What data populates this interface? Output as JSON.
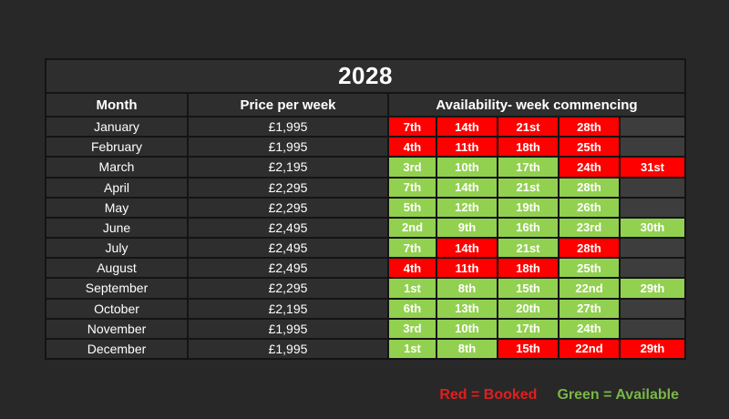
{
  "title": "2028",
  "columns": {
    "month": "Month",
    "price": "Price per week",
    "availability": "Availability- week commencing"
  },
  "legend": {
    "booked": "Red = Booked",
    "available": "Green = Available"
  },
  "colors": {
    "page_bg": "#282828",
    "cell_bg": "#2e2e2e",
    "empty_cell_bg": "#3d3d3d",
    "grid": "#141414",
    "text": "#ffffff",
    "booked": "#ff0000",
    "available": "#92d050",
    "legend_booked": "#e01f1f",
    "legend_available": "#7ab648"
  },
  "chart_data": {
    "type": "table",
    "title": "2028",
    "columns": [
      "Month",
      "Price per week",
      "Availability- week commencing"
    ],
    "legend": {
      "red": "Booked",
      "green": "Available"
    },
    "rows": [
      {
        "month": "January",
        "price": "£1,995",
        "weeks": [
          {
            "date": "7th",
            "status": "booked"
          },
          {
            "date": "14th",
            "status": "booked"
          },
          {
            "date": "21st",
            "status": "booked"
          },
          {
            "date": "28th",
            "status": "booked"
          },
          {
            "date": "",
            "status": "empty"
          }
        ]
      },
      {
        "month": "February",
        "price": "£1,995",
        "weeks": [
          {
            "date": "4th",
            "status": "booked"
          },
          {
            "date": "11th",
            "status": "booked"
          },
          {
            "date": "18th",
            "status": "booked"
          },
          {
            "date": "25th",
            "status": "booked"
          },
          {
            "date": "",
            "status": "empty"
          }
        ]
      },
      {
        "month": "March",
        "price": "£2,195",
        "weeks": [
          {
            "date": "3rd",
            "status": "available"
          },
          {
            "date": "10th",
            "status": "available"
          },
          {
            "date": "17th",
            "status": "available"
          },
          {
            "date": "24th",
            "status": "booked"
          },
          {
            "date": "31st",
            "status": "booked"
          }
        ]
      },
      {
        "month": "April",
        "price": "£2,295",
        "weeks": [
          {
            "date": "7th",
            "status": "available"
          },
          {
            "date": "14th",
            "status": "available"
          },
          {
            "date": "21st",
            "status": "available"
          },
          {
            "date": "28th",
            "status": "available"
          },
          {
            "date": "",
            "status": "empty"
          }
        ]
      },
      {
        "month": "May",
        "price": "£2,295",
        "weeks": [
          {
            "date": "5th",
            "status": "available"
          },
          {
            "date": "12th",
            "status": "available"
          },
          {
            "date": "19th",
            "status": "available"
          },
          {
            "date": "26th",
            "status": "available"
          },
          {
            "date": "",
            "status": "empty"
          }
        ]
      },
      {
        "month": "June",
        "price": "£2,495",
        "weeks": [
          {
            "date": "2nd",
            "status": "available"
          },
          {
            "date": "9th",
            "status": "available"
          },
          {
            "date": "16th",
            "status": "available"
          },
          {
            "date": "23rd",
            "status": "available"
          },
          {
            "date": "30th",
            "status": "available"
          }
        ]
      },
      {
        "month": "July",
        "price": "£2,495",
        "weeks": [
          {
            "date": "7th",
            "status": "available"
          },
          {
            "date": "14th",
            "status": "booked"
          },
          {
            "date": "21st",
            "status": "available"
          },
          {
            "date": "28th",
            "status": "booked"
          },
          {
            "date": "",
            "status": "empty"
          }
        ]
      },
      {
        "month": "August",
        "price": "£2,495",
        "weeks": [
          {
            "date": "4th",
            "status": "booked"
          },
          {
            "date": "11th",
            "status": "booked"
          },
          {
            "date": "18th",
            "status": "booked"
          },
          {
            "date": "25th",
            "status": "available"
          },
          {
            "date": "",
            "status": "empty"
          }
        ]
      },
      {
        "month": "September",
        "price": "£2,295",
        "weeks": [
          {
            "date": "1st",
            "status": "available"
          },
          {
            "date": "8th",
            "status": "available"
          },
          {
            "date": "15th",
            "status": "available"
          },
          {
            "date": "22nd",
            "status": "available"
          },
          {
            "date": "29th",
            "status": "available"
          }
        ]
      },
      {
        "month": "October",
        "price": "£2,195",
        "weeks": [
          {
            "date": "6th",
            "status": "available"
          },
          {
            "date": "13th",
            "status": "available"
          },
          {
            "date": "20th",
            "status": "available"
          },
          {
            "date": "27th",
            "status": "available"
          },
          {
            "date": "",
            "status": "empty"
          }
        ]
      },
      {
        "month": "November",
        "price": "£1,995",
        "weeks": [
          {
            "date": "3rd",
            "status": "available"
          },
          {
            "date": "10th",
            "status": "available"
          },
          {
            "date": "17th",
            "status": "available"
          },
          {
            "date": "24th",
            "status": "available"
          },
          {
            "date": "",
            "status": "empty"
          }
        ]
      },
      {
        "month": "December",
        "price": "£1,995",
        "weeks": [
          {
            "date": "1st",
            "status": "available"
          },
          {
            "date": "8th",
            "status": "available"
          },
          {
            "date": "15th",
            "status": "booked"
          },
          {
            "date": "22nd",
            "status": "booked"
          },
          {
            "date": "29th",
            "status": "booked"
          }
        ]
      }
    ]
  }
}
